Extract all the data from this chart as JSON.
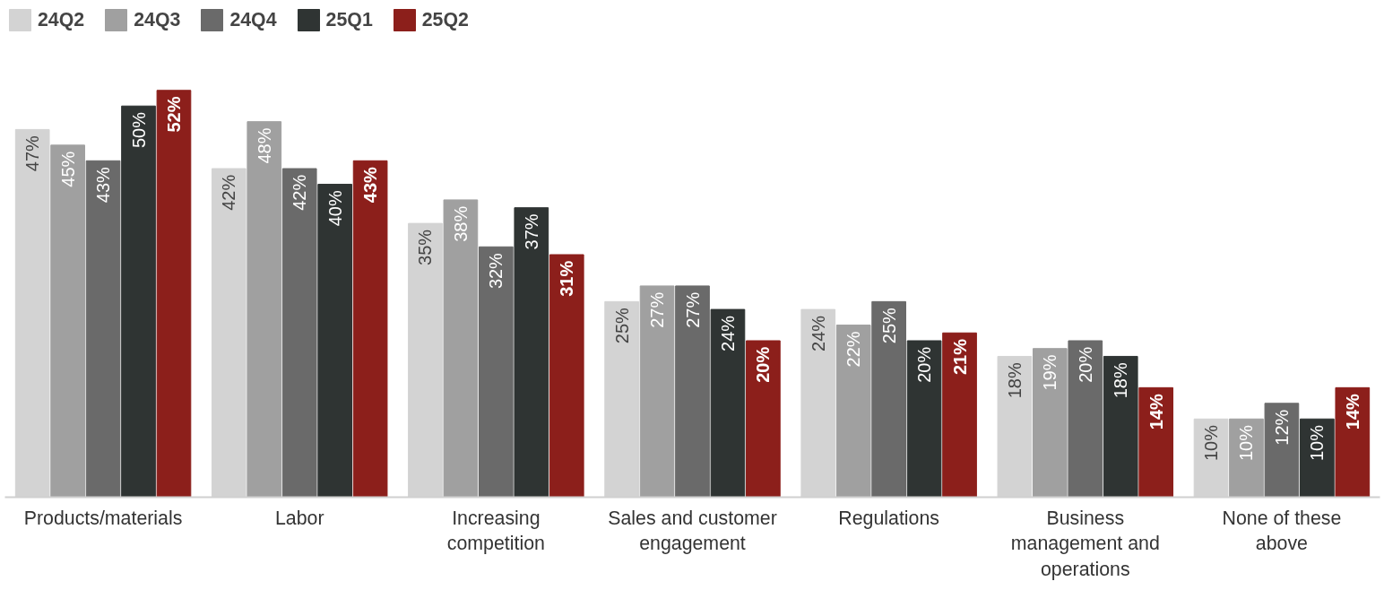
{
  "chart_data": {
    "type": "bar",
    "categories": [
      "Products/materials",
      "Labor",
      "Increasing competition",
      "Sales and customer engagement",
      "Regulations",
      "Business management and operations",
      "None of these above"
    ],
    "series": [
      {
        "name": "24Q2",
        "color": "#d3d3d3",
        "values": [
          47,
          42,
          35,
          25,
          24,
          18,
          10
        ],
        "value_labels": [
          "47%",
          "42%",
          "35%",
          "25%",
          "24%",
          "18%",
          "10%"
        ]
      },
      {
        "name": "24Q3",
        "color": "#a0a0a0",
        "values": [
          45,
          48,
          38,
          27,
          22,
          19,
          10
        ],
        "value_labels": [
          "45%",
          "48%",
          "38%",
          "27%",
          "22%",
          "19%",
          "10%"
        ]
      },
      {
        "name": "24Q4",
        "color": "#6a6a6a",
        "values": [
          43,
          42,
          32,
          27,
          25,
          20,
          12
        ],
        "value_labels": [
          "43%",
          "42%",
          "32%",
          "27%",
          "25%",
          "20%",
          "12%"
        ]
      },
      {
        "name": "25Q1",
        "color": "#2f3433",
        "values": [
          50,
          40,
          37,
          24,
          20,
          18,
          10
        ],
        "value_labels": [
          "50%",
          "40%",
          "37%",
          "24%",
          "20%",
          "18%",
          "10%"
        ]
      },
      {
        "name": "25Q2",
        "color": "#8c1f1b",
        "values": [
          52,
          43,
          31,
          20,
          21,
          14,
          14
        ],
        "value_labels": [
          "52%",
          "43%",
          "31%",
          "20%",
          "21%",
          "14%",
          "14%"
        ]
      }
    ],
    "grid": false,
    "legend": "top left"
  }
}
